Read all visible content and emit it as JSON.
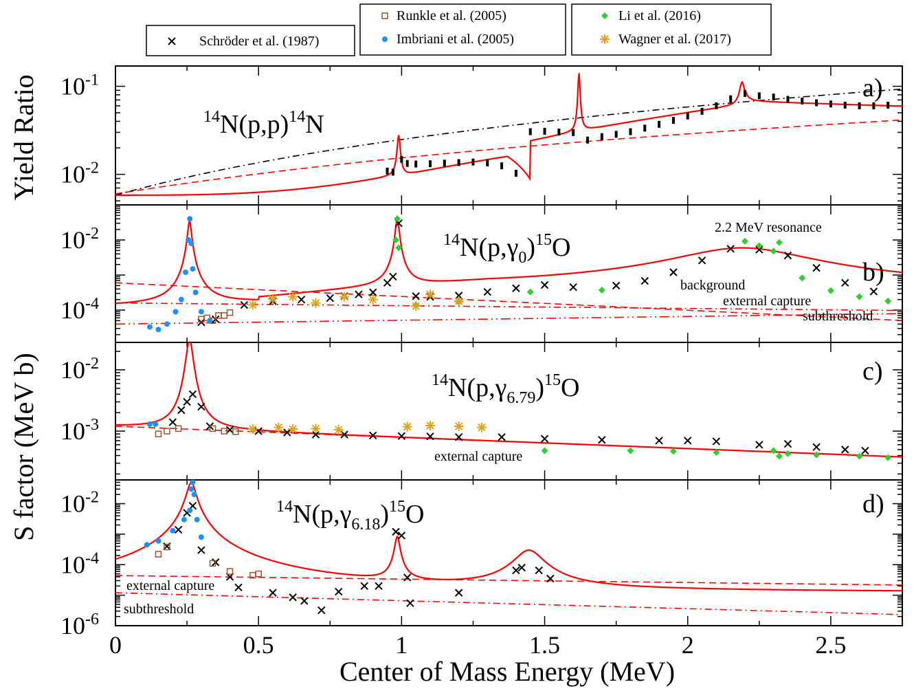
{
  "chart_data": {
    "type": "scatter",
    "xlabel": "Center of Mass Energy (MeV)",
    "ylabel_top": "Yield Ratio",
    "ylabel_bottom": "S factor (MeV b)",
    "xlim": [
      0,
      2.75
    ],
    "x_ticks": [
      "0",
      "0.5",
      "1",
      "1.5",
      "2",
      "2.5"
    ],
    "x_tick_values": [
      0,
      0.5,
      1,
      1.5,
      2,
      2.5
    ],
    "legend": [
      {
        "name": "Schröder et al. (1987)",
        "marker": "x",
        "color": "#000000"
      },
      {
        "name": "Runkle et al. (2005)",
        "marker": "square",
        "color": "#a0522d"
      },
      {
        "name": "Imbriani et al. (2005)",
        "marker": "circle",
        "color": "#1e90ff"
      },
      {
        "name": "Li et al. (2016)",
        "marker": "diamond",
        "color": "#32cd32"
      },
      {
        "name": "Wagner et al. (2017)",
        "marker": "asterisk",
        "color": "#daa520"
      }
    ],
    "colors": {
      "fit": "#ff0000",
      "background_fit": "#000000",
      "frame": "#000000"
    },
    "panels": [
      {
        "id": "a",
        "letter": "a)",
        "reaction": {
          "pre": "14",
          "a": "N(p,p)",
          "sup2": "14",
          "b": "N",
          "sub": ""
        },
        "yscale": "log",
        "ylim": [
          0.0045,
          0.17
        ],
        "y_ticks": [
          {
            "base": "10",
            "exp": "-1",
            "value": 0.1
          },
          {
            "base": "10",
            "exp": "-2",
            "value": 0.01
          }
        ],
        "annotations": [],
        "schroder": [
          [
            0.95,
            0.0109
          ],
          [
            0.97,
            0.0106
          ],
          [
            1.0,
            0.0148
          ],
          [
            1.02,
            0.0133
          ],
          [
            1.05,
            0.0131
          ],
          [
            1.1,
            0.0132
          ],
          [
            1.15,
            0.0134
          ],
          [
            1.2,
            0.0136
          ],
          [
            1.25,
            0.0138
          ],
          [
            1.3,
            0.0135
          ],
          [
            1.35,
            0.0125
          ],
          [
            1.4,
            0.0103
          ],
          [
            1.45,
            0.0305
          ],
          [
            1.5,
            0.0308
          ],
          [
            1.55,
            0.0302
          ],
          [
            1.6,
            0.0298
          ],
          [
            1.65,
            0.0245
          ],
          [
            1.7,
            0.0268
          ],
          [
            1.75,
            0.0285
          ],
          [
            1.8,
            0.0305
          ],
          [
            1.85,
            0.0335
          ],
          [
            1.9,
            0.037
          ],
          [
            1.95,
            0.041
          ],
          [
            2.0,
            0.046
          ],
          [
            2.05,
            0.052
          ],
          [
            2.1,
            0.06
          ],
          [
            2.15,
            0.072
          ],
          [
            2.2,
            0.083
          ],
          [
            2.25,
            0.078
          ],
          [
            2.3,
            0.0755
          ],
          [
            2.35,
            0.071
          ],
          [
            2.4,
            0.068
          ],
          [
            2.45,
            0.065
          ],
          [
            2.5,
            0.063
          ],
          [
            2.55,
            0.061
          ],
          [
            2.6,
            0.06
          ],
          [
            2.65,
            0.06
          ],
          [
            2.7,
            0.061
          ]
        ]
      },
      {
        "id": "b",
        "letter": "b)",
        "reaction": {
          "pre": "14",
          "a": "N(p,γ",
          "sub": "0",
          "mid": ")",
          "sup2": "15",
          "b": "O"
        },
        "yscale": "log",
        "ylim": [
          1.2e-05,
          0.1
        ],
        "y_ticks": [
          {
            "base": "10",
            "exp": "-2",
            "value": 0.01
          },
          {
            "base": "10",
            "exp": "-4",
            "value": 0.0001
          }
        ],
        "annotations": [
          "2.2 MeV resonance",
          "background",
          "external capture",
          "subthreshold"
        ],
        "schroder": [
          [
            0.3,
            4.5e-05
          ],
          [
            0.35,
            5.5e-05
          ],
          [
            0.45,
            0.00014
          ],
          [
            0.55,
            0.00018
          ],
          [
            0.65,
            0.0002
          ],
          [
            0.75,
            0.00022
          ],
          [
            0.8,
            0.00025
          ],
          [
            0.85,
            0.00028
          ],
          [
            0.9,
            0.00032
          ],
          [
            0.95,
            0.0006
          ],
          [
            0.97,
            0.0009
          ],
          [
            0.99,
            0.03
          ],
          [
            1.05,
            0.00025
          ],
          [
            1.1,
            0.00024
          ],
          [
            1.2,
            0.00026
          ],
          [
            1.3,
            0.00033
          ],
          [
            1.4,
            0.00042
          ],
          [
            1.5,
            0.00052
          ],
          [
            1.6,
            0.00045
          ],
          [
            1.75,
            0.0005
          ],
          [
            1.85,
            0.00068
          ],
          [
            1.95,
            0.0012
          ],
          [
            2.05,
            0.0026
          ],
          [
            2.15,
            0.0056
          ],
          [
            2.25,
            0.0053
          ],
          [
            2.35,
            0.0036
          ],
          [
            2.45,
            0.0016
          ],
          [
            2.55,
            0.0006
          ],
          [
            2.65,
            0.00034
          ]
        ],
        "imbriani": [
          [
            0.12,
            3.3e-05
          ],
          [
            0.15,
            2.8e-05
          ],
          [
            0.18,
            4e-05
          ],
          [
            0.21,
            9e-05
          ],
          [
            0.23,
            0.0002
          ],
          [
            0.245,
            0.0012
          ],
          [
            0.255,
            0.01
          ],
          [
            0.26,
            0.04
          ],
          [
            0.265,
            0.008
          ],
          [
            0.27,
            0.0015
          ],
          [
            0.28,
            0.00032
          ],
          [
            0.3,
            9e-05
          ],
          [
            0.33,
            5e-05
          ]
        ],
        "runkle": [
          [
            0.3,
            5.5e-05
          ],
          [
            0.32,
            6e-05
          ],
          [
            0.34,
            5e-05
          ],
          [
            0.36,
            7e-05
          ],
          [
            0.38,
            7e-05
          ],
          [
            0.4,
            8.5e-05
          ]
        ],
        "li": [
          [
            0.98,
            0.01
          ],
          [
            0.985,
            0.04
          ],
          [
            0.99,
            0.006
          ],
          [
            1.05,
            0.00014
          ],
          [
            1.2,
            0.00017
          ],
          [
            1.45,
            0.00033
          ],
          [
            1.7,
            0.00037
          ],
          [
            2.2,
            0.0092
          ],
          [
            2.25,
            0.0068
          ],
          [
            2.3,
            0.0048
          ],
          [
            2.32,
            0.0085
          ],
          [
            2.4,
            0.00082
          ],
          [
            2.5,
            0.00036
          ],
          [
            2.6,
            0.00024
          ],
          [
            2.7,
            0.00018
          ]
        ],
        "wagner": [
          [
            0.48,
            0.00014
          ],
          [
            0.55,
            0.00021
          ],
          [
            0.62,
            0.00024
          ],
          [
            0.7,
            0.00016
          ],
          [
            0.8,
            0.00024
          ],
          [
            0.9,
            0.0002
          ],
          [
            1.05,
            0.00013
          ],
          [
            1.1,
            0.00028
          ],
          [
            1.2,
            0.00018
          ]
        ]
      },
      {
        "id": "c",
        "letter": "c)",
        "reaction": {
          "pre": "14",
          "a": "N(p,γ",
          "sub": "6.79",
          "mid": ")",
          "sup2": "15",
          "b": "O"
        },
        "yscale": "log",
        "ylim": [
          0.00016,
          0.028
        ],
        "y_ticks": [
          {
            "base": "10",
            "exp": "-2",
            "value": 0.01
          },
          {
            "base": "10",
            "exp": "-3",
            "value": 0.001
          }
        ],
        "annotations": [
          "external capture"
        ],
        "schroder": [
          [
            0.2,
            0.0014
          ],
          [
            0.23,
            0.0022
          ],
          [
            0.25,
            0.003
          ],
          [
            0.27,
            0.004
          ],
          [
            0.3,
            0.0025
          ],
          [
            0.33,
            0.0012
          ],
          [
            0.4,
            0.00105
          ],
          [
            0.5,
            0.001
          ],
          [
            0.6,
            0.00095
          ],
          [
            0.7,
            0.00088
          ],
          [
            0.8,
            0.00088
          ],
          [
            0.9,
            0.00085
          ],
          [
            1.0,
            0.00083
          ],
          [
            1.1,
            0.00082
          ],
          [
            1.2,
            0.0008
          ],
          [
            1.35,
            0.0008
          ],
          [
            1.5,
            0.00075
          ],
          [
            1.7,
            0.00072
          ],
          [
            1.9,
            0.0007
          ],
          [
            2.0,
            0.0007
          ],
          [
            2.1,
            0.00068
          ],
          [
            2.25,
            0.0006
          ],
          [
            2.35,
            0.00062
          ],
          [
            2.45,
            0.00055
          ],
          [
            2.55,
            0.0005
          ],
          [
            2.62,
            0.00048
          ]
        ],
        "imbriani": [
          [
            0.12,
            0.0013
          ],
          [
            0.14,
            0.0013
          ]
        ],
        "runkle": [
          [
            0.15,
            0.0009
          ],
          [
            0.18,
            0.001
          ],
          [
            0.22,
            0.0011
          ],
          [
            0.34,
            0.0011
          ],
          [
            0.38,
            0.001
          ],
          [
            0.42,
            0.00098
          ]
        ],
        "li": [
          [
            1.5,
            0.00048
          ],
          [
            1.8,
            0.00048
          ],
          [
            1.95,
            0.00047
          ],
          [
            2.1,
            0.00045
          ],
          [
            2.3,
            0.00048
          ],
          [
            2.32,
            0.00039
          ],
          [
            2.35,
            0.00043
          ],
          [
            2.45,
            0.00041
          ],
          [
            2.6,
            0.00039
          ],
          [
            2.7,
            0.00037
          ]
        ],
        "wagner": [
          [
            0.48,
            0.00108
          ],
          [
            0.57,
            0.00115
          ],
          [
            0.62,
            0.00108
          ],
          [
            0.7,
            0.0011
          ],
          [
            0.78,
            0.00105
          ],
          [
            1.02,
            0.00118
          ],
          [
            1.1,
            0.00123
          ],
          [
            1.2,
            0.0012
          ],
          [
            1.28,
            0.00115
          ]
        ]
      },
      {
        "id": "d",
        "letter": "d)",
        "reaction": {
          "pre": "14",
          "a": "N(p,γ",
          "sub": "6.18",
          "mid": ")",
          "sup2": "15",
          "b": "O"
        },
        "yscale": "log",
        "ylim": [
          1e-06,
          0.06
        ],
        "y_ticks": [
          {
            "base": "10",
            "exp": "-2",
            "value": 0.01
          },
          {
            "base": "10",
            "exp": "-4",
            "value": 0.0001
          },
          {
            "base": "10",
            "exp": "-6",
            "value": 1e-06
          }
        ],
        "annotations": [
          "external capture",
          "subthreshold"
        ],
        "schroder": [
          [
            0.18,
            0.0004
          ],
          [
            0.22,
            0.0014
          ],
          [
            0.25,
            0.005
          ],
          [
            0.27,
            0.0085
          ],
          [
            0.3,
            0.0003
          ],
          [
            0.35,
            0.00012
          ],
          [
            0.4,
            4e-05
          ],
          [
            0.43,
            1.8e-05
          ],
          [
            0.55,
            1.2e-05
          ],
          [
            0.62,
            8.5e-06
          ],
          [
            0.66,
            6.5e-06
          ],
          [
            0.72,
            3.2e-06
          ],
          [
            0.78,
            1.3e-05
          ],
          [
            0.87,
            2e-05
          ],
          [
            0.92,
            2e-05
          ],
          [
            0.98,
            0.0012
          ],
          [
            1.0,
            0.0009
          ],
          [
            1.02,
            3.8e-05
          ],
          [
            1.03,
            5.5e-06
          ],
          [
            1.2,
            1.2e-05
          ],
          [
            1.4,
            6.5e-05
          ],
          [
            1.42,
            8e-05
          ],
          [
            1.48,
            6.5e-05
          ],
          [
            1.52,
            3.5e-05
          ]
        ],
        "imbriani": [
          [
            0.11,
            0.00045
          ],
          [
            0.15,
            0.0006
          ],
          [
            0.2,
            0.0013
          ],
          [
            0.24,
            0.003
          ],
          [
            0.26,
            0.006
          ],
          [
            0.265,
            0.03
          ],
          [
            0.27,
            0.05
          ],
          [
            0.275,
            0.02
          ],
          [
            0.285,
            0.003
          ],
          [
            0.3,
            0.0008
          ]
        ],
        "runkle": [
          [
            0.15,
            0.00022
          ],
          [
            0.18,
            0.00038
          ],
          [
            0.34,
            0.00011
          ],
          [
            0.4,
            6e-05
          ],
          [
            0.48,
            4.5e-05
          ],
          [
            0.5,
            5e-05
          ]
        ],
        "li": [],
        "wagner": []
      }
    ]
  }
}
